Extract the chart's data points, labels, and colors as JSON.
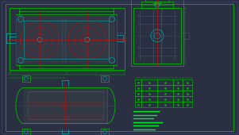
{
  "bg_color": "#2a2f42",
  "border_color": "#3a4060",
  "green": "#00bb00",
  "bright_green": "#00ee33",
  "cyan": "#00aaaa",
  "red": "#bb1111",
  "dark_red": "#882222",
  "gray_line": "#445566"
}
